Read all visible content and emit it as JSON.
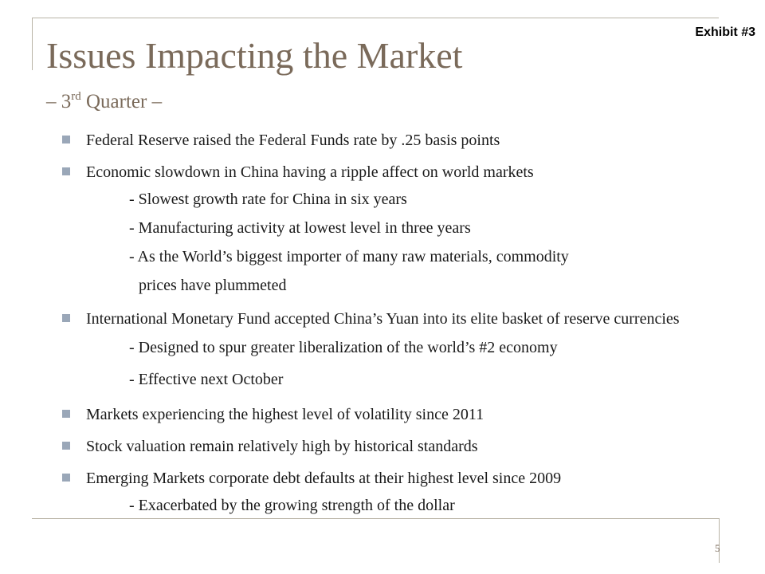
{
  "slide": {
    "exhibit_label": "Exhibit #3",
    "title": "Issues Impacting the Market",
    "subtitle": {
      "prefix": "– 3",
      "superscript": "rd",
      "suffix": " Quarter –"
    },
    "page_number": "5"
  },
  "bullets": [
    {
      "text": "Federal Reserve raised the Federal Funds rate by .25 basis  points",
      "sub": []
    },
    {
      "text": "Economic slowdown in China having a ripple affect on world markets",
      "sub": [
        "- Slowest growth rate for China in six years",
        "- Manufacturing activity at lowest level in three years",
        "- As the World’s biggest importer of many raw materials, commodity",
        "prices have plummeted"
      ]
    },
    {
      "text": "International Monetary Fund accepted China’s Yuan into its elite basket of reserve currencies",
      "sub": [
        "- Designed to spur greater liberalization of the world’s #2 economy",
        "- Effective next October"
      ]
    },
    {
      "text": "Markets experiencing the highest level of volatility since 2011",
      "sub": []
    },
    {
      "text": "Stock valuation remain relatively high by historical standards",
      "sub": []
    },
    {
      "text": "Emerging Markets corporate debt defaults at their highest level since 2009",
      "sub": [
        "- Exacerbated by the growing strength of the dollar"
      ]
    }
  ]
}
